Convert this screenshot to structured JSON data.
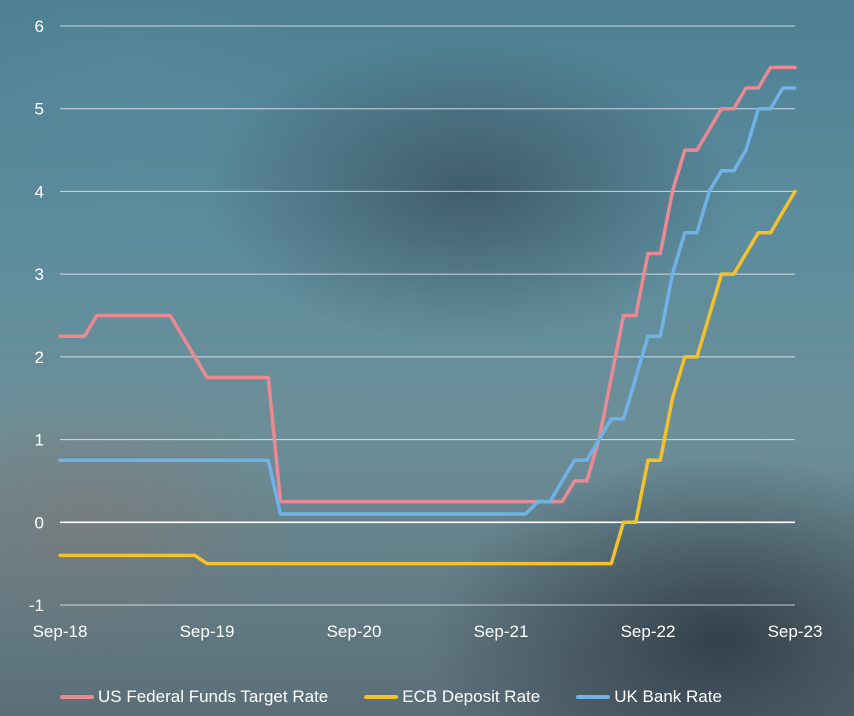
{
  "chart_data": {
    "type": "line",
    "x_ticks": [
      "Sep-18",
      "Sep-19",
      "Sep-20",
      "Sep-21",
      "Sep-22",
      "Sep-23"
    ],
    "y_ticks": [
      -1,
      0,
      1,
      2,
      3,
      4,
      5,
      6
    ],
    "ylim": [
      -1,
      6
    ],
    "xlim": [
      "2018-09",
      "2023-09"
    ],
    "grid": true,
    "legend_position": "bottom",
    "colors": {
      "us": "#e98a93",
      "ecb": "#f2c12e",
      "uk": "#6fb3e6",
      "grid": "#ffffff"
    },
    "series": [
      {
        "name": "US Federal Funds Target Rate",
        "color": "#e98a93",
        "points": [
          [
            "2018-09",
            2.25
          ],
          [
            "2018-11",
            2.25
          ],
          [
            "2018-12",
            2.5
          ],
          [
            "2019-06",
            2.5
          ],
          [
            "2019-07",
            2.25
          ],
          [
            "2019-08",
            2.0
          ],
          [
            "2019-09",
            1.75
          ],
          [
            "2020-02",
            1.75
          ],
          [
            "2020-03",
            0.25
          ],
          [
            "2022-02",
            0.25
          ],
          [
            "2022-03",
            0.5
          ],
          [
            "2022-04",
            0.5
          ],
          [
            "2022-05",
            1.0
          ],
          [
            "2022-06",
            1.75
          ],
          [
            "2022-07",
            2.5
          ],
          [
            "2022-08",
            2.5
          ],
          [
            "2022-09",
            3.25
          ],
          [
            "2022-10",
            3.25
          ],
          [
            "2022-11",
            4.0
          ],
          [
            "2022-12",
            4.5
          ],
          [
            "2023-01",
            4.5
          ],
          [
            "2023-02",
            4.75
          ],
          [
            "2023-03",
            5.0
          ],
          [
            "2023-04",
            5.0
          ],
          [
            "2023-05",
            5.25
          ],
          [
            "2023-06",
            5.25
          ],
          [
            "2023-07",
            5.5
          ],
          [
            "2023-09",
            5.5
          ]
        ]
      },
      {
        "name": "ECB Deposit Rate",
        "color": "#f2c12e",
        "points": [
          [
            "2018-09",
            -0.4
          ],
          [
            "2019-08",
            -0.4
          ],
          [
            "2019-09",
            -0.5
          ],
          [
            "2022-06",
            -0.5
          ],
          [
            "2022-07",
            0.0
          ],
          [
            "2022-08",
            0.0
          ],
          [
            "2022-09",
            0.75
          ],
          [
            "2022-10",
            0.75
          ],
          [
            "2022-11",
            1.5
          ],
          [
            "2022-12",
            2.0
          ],
          [
            "2023-01",
            2.0
          ],
          [
            "2023-02",
            2.5
          ],
          [
            "2023-03",
            3.0
          ],
          [
            "2023-04",
            3.0
          ],
          [
            "2023-05",
            3.25
          ],
          [
            "2023-06",
            3.5
          ],
          [
            "2023-07",
            3.5
          ],
          [
            "2023-09",
            4.0
          ]
        ]
      },
      {
        "name": "UK Bank Rate",
        "color": "#6fb3e6",
        "points": [
          [
            "2018-09",
            0.75
          ],
          [
            "2020-02",
            0.75
          ],
          [
            "2020-03",
            0.1
          ],
          [
            "2021-11",
            0.1
          ],
          [
            "2021-12",
            0.25
          ],
          [
            "2022-01",
            0.25
          ],
          [
            "2022-02",
            0.5
          ],
          [
            "2022-03",
            0.75
          ],
          [
            "2022-04",
            0.75
          ],
          [
            "2022-05",
            1.0
          ],
          [
            "2022-06",
            1.25
          ],
          [
            "2022-07",
            1.25
          ],
          [
            "2022-08",
            1.75
          ],
          [
            "2022-09",
            2.25
          ],
          [
            "2022-10",
            2.25
          ],
          [
            "2022-11",
            3.0
          ],
          [
            "2022-12",
            3.5
          ],
          [
            "2023-01",
            3.5
          ],
          [
            "2023-02",
            4.0
          ],
          [
            "2023-03",
            4.25
          ],
          [
            "2023-04",
            4.25
          ],
          [
            "2023-05",
            4.5
          ],
          [
            "2023-06",
            5.0
          ],
          [
            "2023-07",
            5.0
          ],
          [
            "2023-08",
            5.25
          ],
          [
            "2023-09",
            5.25
          ]
        ]
      }
    ]
  }
}
